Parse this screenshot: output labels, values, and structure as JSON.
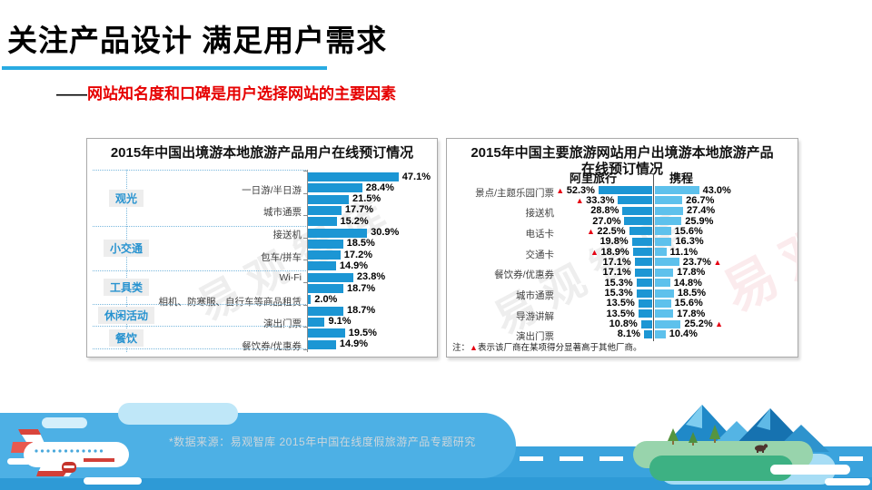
{
  "header": {
    "title": "关注产品设计 满足用户需求",
    "subtitle_dash": "——",
    "subtitle_text": "网站知名度和口碑是用户选择网站的主要因素"
  },
  "watermark_text": "易观智库",
  "footer": {
    "source": "*数据来源：易观智库 2015年中国在线度假旅游产品专题研究"
  },
  "colors": {
    "accent_cyan": "#29abe2",
    "subtitle_red": "#e60000",
    "bar_blue": "#1c96d4",
    "bar_light_blue": "#5ec1ec",
    "flag_red": "#e60012",
    "group_label_blue": "#2893d0"
  },
  "chart_data": [
    {
      "type": "bar",
      "orientation": "horizontal",
      "title": "2015年中国出境游本地旅游产品用户在线预订情况",
      "unit": "%",
      "xlim": [
        0,
        50
      ],
      "note": "category labels shown on alternate bars only, grouped by product type",
      "groups": [
        {
          "name": "观光",
          "rows": [
            {
              "label": "",
              "value": 47.1
            },
            {
              "label": "一日游/半日游",
              "value": 28.4
            },
            {
              "label": "",
              "value": 21.5
            },
            {
              "label": "城市通票",
              "value": 17.7
            },
            {
              "label": "",
              "value": 15.2
            }
          ]
        },
        {
          "name": "小交通",
          "rows": [
            {
              "label": "接送机",
              "value": 30.9
            },
            {
              "label": "",
              "value": 18.5
            },
            {
              "label": "包车/拼车",
              "value": 17.2
            },
            {
              "label": "",
              "value": 14.9
            }
          ]
        },
        {
          "name": "工具类",
          "rows": [
            {
              "label": "Wi-Fi",
              "value": 23.8
            },
            {
              "label": "",
              "value": 18.7
            },
            {
              "label": "相机、防寒服、自行车等商品租赁",
              "value": 2.0
            }
          ]
        },
        {
          "name": "休闲活动",
          "rows": [
            {
              "label": "",
              "value": 18.7
            },
            {
              "label": "演出门票",
              "value": 9.1
            }
          ]
        },
        {
          "name": "餐饮",
          "rows": [
            {
              "label": "",
              "value": 19.5
            },
            {
              "label": "餐饮券/优惠券",
              "value": 14.9
            }
          ]
        }
      ]
    },
    {
      "type": "bar",
      "orientation": "horizontal-tornado",
      "title": "2015年中国主要旅游网站用户出境游本地旅游产品在线预订情况",
      "unit": "%",
      "series_left": "阿里旅行",
      "series_right": "携程",
      "note_prefix": "注：",
      "note_flag": "▲",
      "note_text": "表示该厂商在某项得分显著高于其他厂商。",
      "rows": [
        {
          "label": "景点/主题乐园门票",
          "left": 52.3,
          "left_flag": true,
          "right": 43.0,
          "right_flag": false
        },
        {
          "label": "",
          "left": 33.3,
          "left_flag": true,
          "right": 26.7,
          "right_flag": false
        },
        {
          "label": "接送机",
          "left": 28.8,
          "left_flag": false,
          "right": 27.4,
          "right_flag": false
        },
        {
          "label": "",
          "left": 27.0,
          "left_flag": false,
          "right": 25.9,
          "right_flag": false
        },
        {
          "label": "电话卡",
          "left": 22.5,
          "left_flag": true,
          "right": 15.6,
          "right_flag": false
        },
        {
          "label": "",
          "left": 19.8,
          "left_flag": false,
          "right": 16.3,
          "right_flag": false
        },
        {
          "label": "交通卡",
          "left": 18.9,
          "left_flag": true,
          "right": 11.1,
          "right_flag": false
        },
        {
          "label": "",
          "left": 17.1,
          "left_flag": false,
          "right": 23.7,
          "right_flag": true
        },
        {
          "label": "餐饮券/优惠券",
          "left": 17.1,
          "left_flag": false,
          "right": 17.8,
          "right_flag": false
        },
        {
          "label": "",
          "left": 15.3,
          "left_flag": false,
          "right": 14.8,
          "right_flag": false
        },
        {
          "label": "城市通票",
          "left": 15.3,
          "left_flag": false,
          "right": 18.5,
          "right_flag": false
        },
        {
          "label": "",
          "left": 13.5,
          "left_flag": false,
          "right": 15.6,
          "right_flag": false
        },
        {
          "label": "导游讲解",
          "left": 13.5,
          "left_flag": false,
          "right": 17.8,
          "right_flag": false
        },
        {
          "label": "",
          "left": 10.8,
          "left_flag": false,
          "right": 25.2,
          "right_flag": true
        },
        {
          "label": "演出门票",
          "left": 8.1,
          "left_flag": false,
          "right": 10.4,
          "right_flag": false
        }
      ]
    }
  ]
}
